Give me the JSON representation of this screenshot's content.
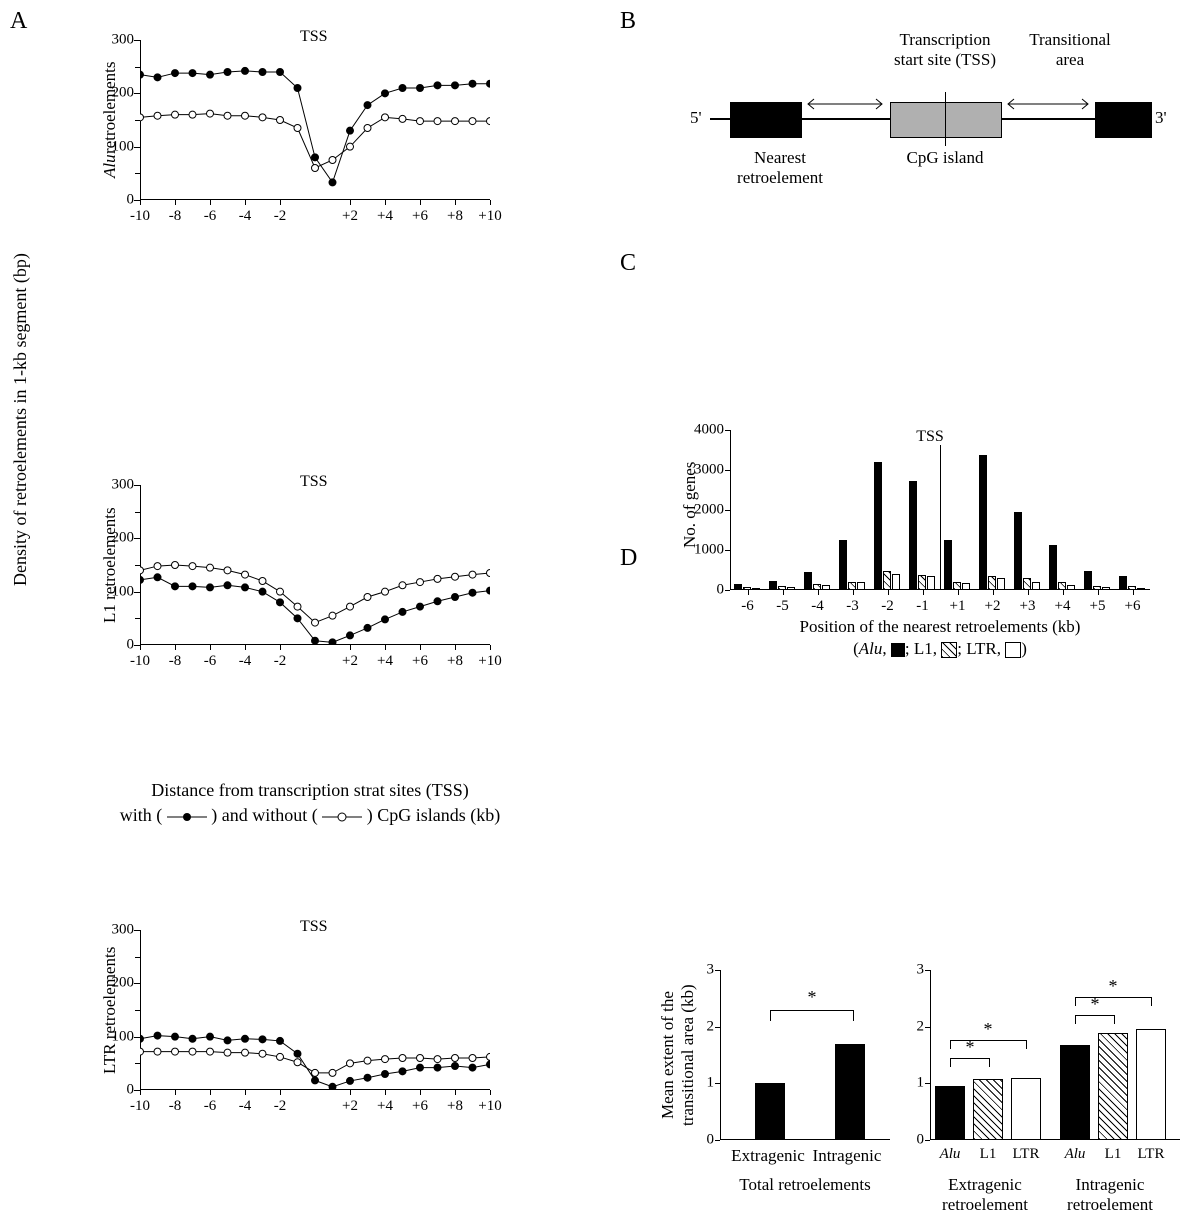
{
  "panel_letters": {
    "A": "A",
    "B": "B",
    "C": "C",
    "D": "D"
  },
  "panelA": {
    "outer_ylabel": "Density of retroelements in 1-kb segment (bp)",
    "xaxis_label_line1": "Distance from transcription strat sites (TSS)",
    "xaxis_label_line2a": "with (",
    "xaxis_label_line2b": ")  and without (",
    "xaxis_label_line2c": ") CpG islands (kb)",
    "tss": "TSS",
    "yticks": [
      0,
      100,
      200,
      300
    ],
    "xticks": [
      "-10",
      "-8",
      "-6",
      "-4",
      "-2",
      "+2",
      "+4",
      "+6",
      "+8",
      "+10"
    ],
    "xcenter_idx_between": 5,
    "charts": [
      {
        "ylabel_html": "<i>Alu</i> retroelements",
        "filled": [
          235,
          230,
          238,
          238,
          235,
          240,
          242,
          240,
          240,
          210,
          80,
          33,
          130,
          178,
          200,
          210,
          210,
          215,
          215,
          218,
          218
        ],
        "open": [
          155,
          158,
          160,
          160,
          162,
          158,
          158,
          155,
          150,
          135,
          60,
          75,
          100,
          135,
          155,
          152,
          148,
          148,
          148,
          148,
          148
        ]
      },
      {
        "ylabel_html": "L1 retroelements",
        "filled": [
          122,
          127,
          110,
          110,
          108,
          112,
          108,
          100,
          80,
          50,
          8,
          5,
          18,
          32,
          48,
          62,
          72,
          82,
          90,
          98,
          102
        ],
        "open": [
          140,
          148,
          150,
          148,
          145,
          140,
          132,
          120,
          100,
          72,
          42,
          55,
          72,
          90,
          100,
          112,
          118,
          124,
          128,
          132,
          135
        ]
      },
      {
        "ylabel_html": "LTR retroelements",
        "filled": [
          96,
          102,
          100,
          96,
          100,
          93,
          96,
          95,
          92,
          68,
          18,
          6,
          17,
          23,
          30,
          35,
          42,
          42,
          45,
          42,
          48
        ],
        "open": [
          72,
          72,
          72,
          72,
          72,
          70,
          70,
          68,
          62,
          52,
          32,
          32,
          50,
          55,
          58,
          60,
          60,
          58,
          60,
          60,
          62
        ]
      }
    ]
  },
  "panelB": {
    "labels": {
      "five_prime": "5'",
      "three_prime": "3'",
      "nearest1": "Nearest",
      "nearest2": "retroelement",
      "cpg": "CpG island",
      "tss1": "Transcription",
      "tss2": "start site (TSS)",
      "ta1": "Transitional",
      "ta2": "area"
    }
  },
  "panelC": {
    "tss": "TSS",
    "ylabel": "No. of genes",
    "xlabel": "Position of the nearest retroelements (kb)",
    "legend_prefix": "(",
    "legend_alu": "Alu",
    "legend_alu_suffix": ", ",
    "legend_l1": "; L1, ",
    "legend_ltr": "; LTR, ",
    "legend_end": ")",
    "yticks": [
      0,
      1000,
      2000,
      3000,
      4000
    ],
    "categories": [
      "-6",
      "-5",
      "-4",
      "-3",
      "-2",
      "-1",
      "+1",
      "+2",
      "+3",
      "+4",
      "+5",
      "+6"
    ],
    "series": {
      "alu": [
        150,
        220,
        450,
        1250,
        3200,
        2720,
        1250,
        3380,
        1950,
        1120,
        480,
        350
      ],
      "l1": [
        70,
        100,
        150,
        210,
        480,
        370,
        210,
        350,
        310,
        210,
        110,
        100
      ],
      "ltr": [
        50,
        80,
        120,
        210,
        410,
        360,
        170,
        310,
        200,
        130,
        80,
        60
      ]
    },
    "colors": {
      "alu": "#000",
      "l1_pattern": "hatch",
      "ltr": "#fff"
    }
  },
  "panelD": {
    "ylabel": "Mean extent of the\ntransitional area (kb)",
    "yticks": [
      0,
      1,
      2,
      3
    ],
    "star": "*",
    "left": {
      "categories": [
        "Extragenic",
        "Intragenic"
      ],
      "values": [
        1.0,
        1.7
      ],
      "group_label": "Total retroelements"
    },
    "right": {
      "categories": [
        "Alu",
        "L1",
        "LTR",
        "Alu",
        "L1",
        "LTR"
      ],
      "values": [
        0.95,
        1.08,
        1.1,
        1.68,
        1.88,
        1.96
      ],
      "styles": [
        "black",
        "hatch",
        "white",
        "black",
        "hatch",
        "white"
      ],
      "group_labels": [
        "Extragenic\nretroelement",
        "Intragenic\nretroelement"
      ]
    }
  }
}
